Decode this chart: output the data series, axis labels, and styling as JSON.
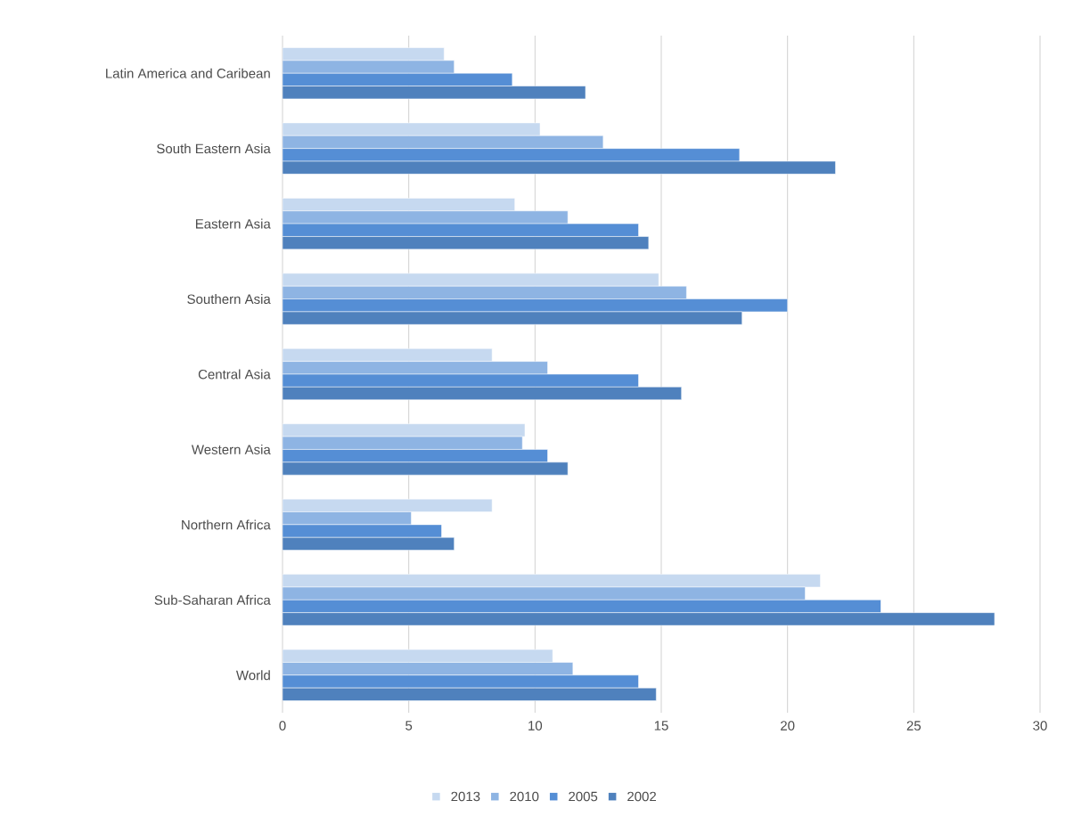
{
  "chart_data": {
    "type": "bar",
    "orientation": "horizontal",
    "categories": [
      "Latin America and Caribean",
      "South Eastern Asia",
      "Eastern Asia",
      "Southern Asia",
      "Central Asia",
      "Western Asia",
      "Northern Africa",
      "Sub-Saharan Africa",
      "World"
    ],
    "series": [
      {
        "name": "2013",
        "color": "#c6d9f0",
        "values": [
          6.4,
          10.2,
          9.2,
          14.9,
          8.3,
          9.6,
          8.3,
          21.3,
          10.7
        ]
      },
      {
        "name": "2010",
        "color": "#8eb4e3",
        "values": [
          6.8,
          12.7,
          11.3,
          16.0,
          10.5,
          9.5,
          5.1,
          20.7,
          11.5
        ]
      },
      {
        "name": "2005",
        "color": "#558ed5",
        "values": [
          9.1,
          18.1,
          14.1,
          20.0,
          14.1,
          10.5,
          6.3,
          23.7,
          14.1
        ]
      },
      {
        "name": "2002",
        "color": "#4f81bd",
        "values": [
          12.0,
          21.9,
          14.5,
          18.2,
          15.8,
          11.3,
          6.8,
          28.2,
          14.8
        ]
      }
    ],
    "xlim": [
      0,
      30
    ],
    "xticks": [
      0,
      5,
      10,
      15,
      20,
      25,
      30
    ],
    "grid": "x",
    "legend": "bottom"
  }
}
